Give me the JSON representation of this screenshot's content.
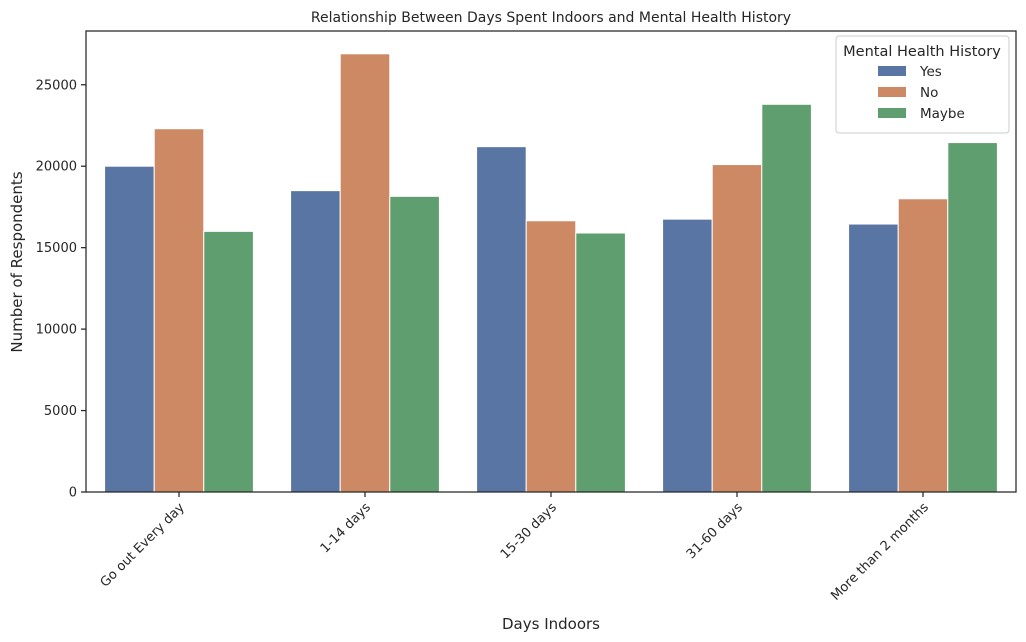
{
  "chart_data": {
    "type": "bar",
    "title": "Relationship Between Days Spent Indoors and Mental Health History",
    "xlabel": "Days Indoors",
    "ylabel": "Number of Respondents",
    "categories": [
      "Go out Every day",
      "1-14 days",
      "15-30 days",
      "31-60 days",
      "More than 2 months"
    ],
    "series": [
      {
        "name": "Yes",
        "color": "#5875a4",
        "values": [
          20000,
          18500,
          21200,
          16750,
          16450
        ]
      },
      {
        "name": "No",
        "color": "#cc8963",
        "values": [
          22300,
          26900,
          16650,
          20100,
          18000
        ]
      },
      {
        "name": "Maybe",
        "color": "#5f9e6e",
        "values": [
          16000,
          18150,
          15900,
          23800,
          21450
        ]
      }
    ],
    "ylim": [
      0,
      28300
    ],
    "yticks": [
      0,
      5000,
      10000,
      15000,
      20000,
      25000
    ],
    "grid": false,
    "legend": {
      "title": "Mental Health History",
      "placement": "top-right"
    }
  }
}
